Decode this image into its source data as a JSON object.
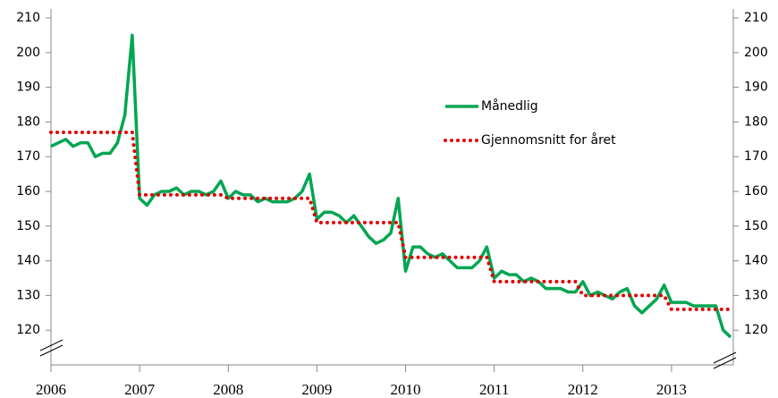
{
  "chart_data": {
    "type": "line",
    "categories": [
      "2006",
      null,
      null,
      null,
      null,
      null,
      null,
      null,
      null,
      null,
      null,
      null,
      "2007",
      null,
      null,
      null,
      null,
      null,
      null,
      null,
      null,
      null,
      null,
      null,
      "2008",
      null,
      null,
      null,
      null,
      null,
      null,
      null,
      null,
      null,
      null,
      null,
      "2009",
      null,
      null,
      null,
      null,
      null,
      null,
      null,
      null,
      null,
      null,
      null,
      "2010",
      null,
      null,
      null,
      null,
      null,
      null,
      null,
      null,
      null,
      null,
      null,
      "2011",
      null,
      null,
      null,
      null,
      null,
      null,
      null,
      null,
      null,
      null,
      null,
      "2012",
      null,
      null,
      null,
      null,
      null,
      null,
      null,
      null,
      null,
      null,
      null,
      "2013",
      null,
      null,
      null,
      null,
      null,
      null,
      null,
      null
    ],
    "series": [
      {
        "name": "Månedlig",
        "color": "#00a651",
        "style": "solid",
        "values": [
          173,
          174,
          175,
          173,
          174,
          174,
          170,
          171,
          171,
          174,
          182,
          205,
          158,
          156,
          159,
          160,
          160,
          161,
          159,
          160,
          160,
          159,
          160,
          163,
          158,
          160,
          159,
          159,
          157,
          158,
          157,
          157,
          157,
          158,
          160,
          165,
          152,
          154,
          154,
          153,
          151,
          153,
          150,
          147,
          145,
          146,
          148,
          158,
          137,
          144,
          144,
          142,
          141,
          142,
          140,
          138,
          138,
          138,
          140,
          144,
          135,
          137,
          136,
          136,
          134,
          135,
          134,
          132,
          132,
          132,
          131,
          131,
          134,
          130,
          131,
          130,
          129,
          131,
          132,
          127,
          125,
          127,
          129,
          133,
          128,
          128,
          128,
          127,
          127,
          127,
          127,
          120,
          118
        ]
      },
      {
        "name": "Gjennomsnitt for året",
        "color": "#e00000",
        "style": "dotted",
        "values": [
          177,
          177,
          177,
          177,
          177,
          177,
          177,
          177,
          177,
          177,
          177,
          177,
          159,
          159,
          159,
          159,
          159,
          159,
          159,
          159,
          159,
          159,
          159,
          159,
          158,
          158,
          158,
          158,
          158,
          158,
          158,
          158,
          158,
          158,
          158,
          158,
          151,
          151,
          151,
          151,
          151,
          151,
          151,
          151,
          151,
          151,
          151,
          151,
          141,
          141,
          141,
          141,
          141,
          141,
          141,
          141,
          141,
          141,
          141,
          141,
          134,
          134,
          134,
          134,
          134,
          134,
          134,
          134,
          134,
          134,
          134,
          134,
          130,
          130,
          130,
          130,
          130,
          130,
          130,
          130,
          130,
          130,
          130,
          130,
          126,
          126,
          126,
          126,
          126,
          126,
          126,
          126,
          126
        ]
      }
    ],
    "ylim": [
      110,
      210
    ],
    "yticks": [
      120,
      130,
      140,
      150,
      160,
      170,
      180,
      190,
      200,
      210
    ],
    "y2lim": [
      110,
      210
    ],
    "y2ticks": [
      120,
      130,
      140,
      150,
      160,
      170,
      180,
      190,
      200,
      210
    ],
    "legend": "right",
    "grid": false
  }
}
